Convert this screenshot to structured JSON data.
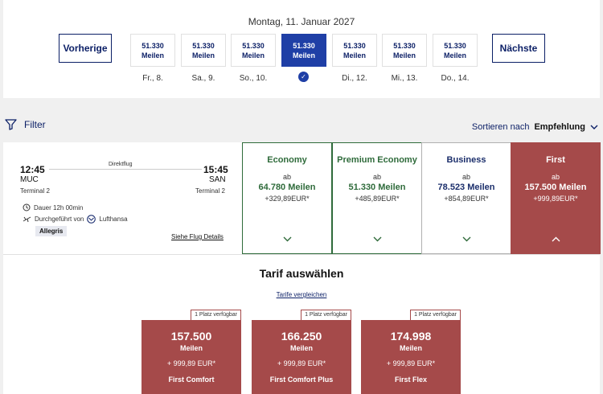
{
  "date_header": {
    "title": "Montag, 11. Januar 2027",
    "prev_label": "Vorherige",
    "next_label": "Nächste",
    "days": [
      {
        "miles": "51.330",
        "unit": "Meilen",
        "label": "Fr., 8."
      },
      {
        "miles": "51.330",
        "unit": "Meilen",
        "label": "Sa., 9."
      },
      {
        "miles": "51.330",
        "unit": "Meilen",
        "label": "So., 10."
      },
      {
        "miles": "51.330",
        "unit": "Meilen",
        "label": "",
        "selected": true
      },
      {
        "miles": "51.330",
        "unit": "Meilen",
        "label": "Di., 12."
      },
      {
        "miles": "51.330",
        "unit": "Meilen",
        "label": "Mi., 13."
      },
      {
        "miles": "51.330",
        "unit": "Meilen",
        "label": "Do., 14."
      }
    ],
    "selected_icon": "check-circle-icon"
  },
  "toolbar": {
    "filter_label": "Filter",
    "filter_icon": "funnel-icon",
    "sort_prefix": "Sortieren nach",
    "sort_value": "Empfehlung",
    "sort_icon": "chevron-down-icon"
  },
  "flight": {
    "dep_time": "12:45",
    "dep_code": "MUC",
    "dep_terminal": "Terminal 2",
    "arr_time": "15:45",
    "arr_code": "SAN",
    "arr_terminal": "Terminal 2",
    "type": "Direktflug",
    "duration": "Dauer 12h 00min",
    "operated_by": "Durchgeführt von",
    "airline": "Lufthansa",
    "tag": "Allegris",
    "details_link": "Siehe Flug Details"
  },
  "cabins": [
    {
      "name": "Economy",
      "ab": "ab",
      "miles": "64.780 Meilen",
      "eur": "+329,89EUR*",
      "chevron": "v"
    },
    {
      "name": "Premium Economy",
      "ab": "ab",
      "miles": "51.330 Meilen",
      "eur": "+485,89EUR*",
      "chevron": "v"
    },
    {
      "name": "Business",
      "ab": "ab",
      "miles": "78.523 Meilen",
      "eur": "+854,89EUR*",
      "chevron": "v"
    },
    {
      "name": "First",
      "ab": "ab",
      "miles": "157.500 Meilen",
      "eur": "+999,89EUR*",
      "chevron": "^",
      "selected": true
    }
  ],
  "tariffs": {
    "title": "Tarif auswählen",
    "compare_link": "Tarife vergleichen",
    "cards": [
      {
        "badge": "1 Platz verfügbar",
        "miles": "157.500",
        "unit": "Meilen",
        "eur": "+ 999,89 EUR*",
        "name": "First Comfort"
      },
      {
        "badge": "1 Platz verfügbar",
        "miles": "166.250",
        "unit": "Meilen",
        "eur": "+ 999,89 EUR*",
        "name": "First Comfort Plus"
      },
      {
        "badge": "1 Platz verfügbar",
        "miles": "174.998",
        "unit": "Meilen",
        "eur": "+ 999,89 EUR*",
        "name": "First Flex"
      }
    ]
  },
  "colors": {
    "navy": "#0b1f66",
    "selected_blue": "#1f3fa6",
    "green": "#2f6b3b",
    "first_red": "#a54a4a"
  }
}
